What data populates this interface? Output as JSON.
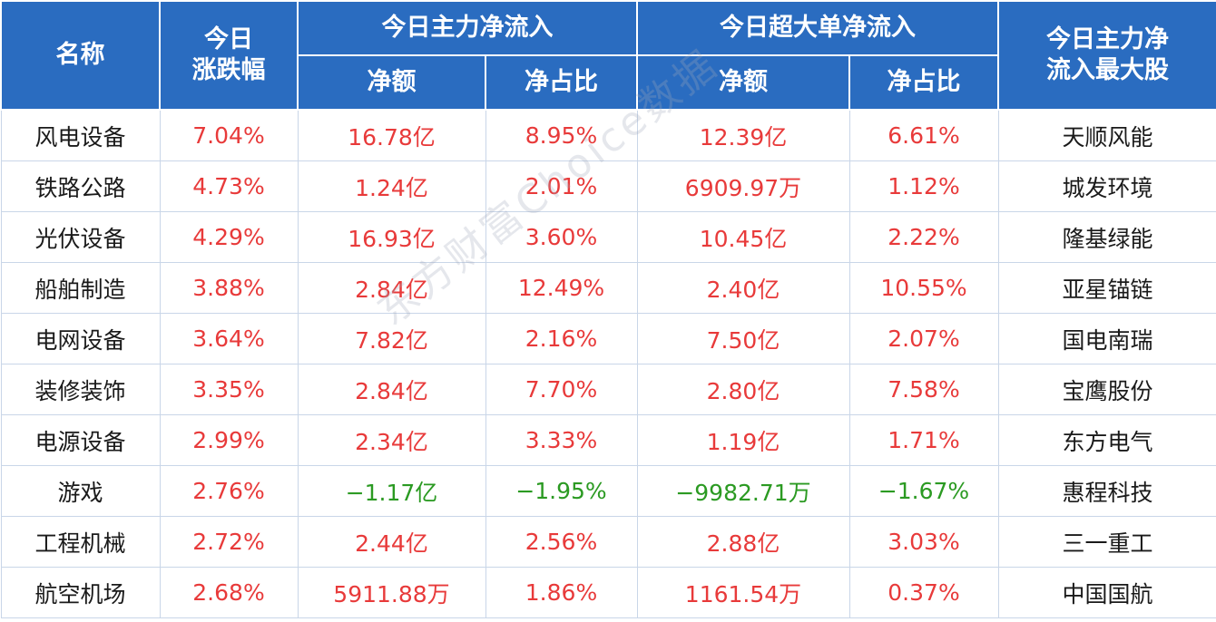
{
  "headers": {
    "name": "名称",
    "change": "今日\n涨跌幅",
    "main_flow": "今日主力净流入",
    "super_flow": "今日超大单净流入",
    "top_stock": "今日主力净\n流入最大股",
    "net_amount": "净额",
    "net_ratio": "净占比"
  },
  "rows": [
    {
      "name": "风电设备",
      "change": "7.04%",
      "main_amt": "16.78亿",
      "main_ratio": "8.95%",
      "super_amt": "12.39亿",
      "super_ratio": "6.61%",
      "top": "天顺风能"
    },
    {
      "name": "铁路公路",
      "change": "4.73%",
      "main_amt": "1.24亿",
      "main_ratio": "2.01%",
      "super_amt": "6909.97万",
      "super_ratio": "1.12%",
      "top": "城发环境"
    },
    {
      "name": "光伏设备",
      "change": "4.29%",
      "main_amt": "16.93亿",
      "main_ratio": "3.60%",
      "super_amt": "10.45亿",
      "super_ratio": "2.22%",
      "top": "隆基绿能"
    },
    {
      "name": "船舶制造",
      "change": "3.88%",
      "main_amt": "2.84亿",
      "main_ratio": "12.49%",
      "super_amt": "2.40亿",
      "super_ratio": "10.55%",
      "top": "亚星锚链"
    },
    {
      "name": "电网设备",
      "change": "3.64%",
      "main_amt": "7.82亿",
      "main_ratio": "2.16%",
      "super_amt": "7.50亿",
      "super_ratio": "2.07%",
      "top": "国电南瑞"
    },
    {
      "name": "装修装饰",
      "change": "3.35%",
      "main_amt": "2.84亿",
      "main_ratio": "7.70%",
      "super_amt": "2.80亿",
      "super_ratio": "7.58%",
      "top": "宝鹰股份"
    },
    {
      "name": "电源设备",
      "change": "2.99%",
      "main_amt": "2.34亿",
      "main_ratio": "3.33%",
      "super_amt": "1.19亿",
      "super_ratio": "1.71%",
      "top": "东方电气"
    },
    {
      "name": "游戏",
      "change": "2.76%",
      "main_amt": "−1.17亿",
      "main_ratio": "−1.95%",
      "super_amt": "−9982.71万",
      "super_ratio": "−1.67%",
      "top": "惠程科技"
    },
    {
      "name": "工程机械",
      "change": "2.72%",
      "main_amt": "2.44亿",
      "main_ratio": "2.56%",
      "super_amt": "2.88亿",
      "super_ratio": "3.03%",
      "top": "三一重工"
    },
    {
      "name": "航空机场",
      "change": "2.68%",
      "main_amt": "5911.88万",
      "main_ratio": "1.86%",
      "super_amt": "1161.54万",
      "super_ratio": "0.37%",
      "top": "中国国航"
    }
  ],
  "watermark": "东方财富Choice数据",
  "colors": {
    "header_bg": "#2a6cc0",
    "up": "#e83a3a",
    "down": "#2b9a22"
  }
}
